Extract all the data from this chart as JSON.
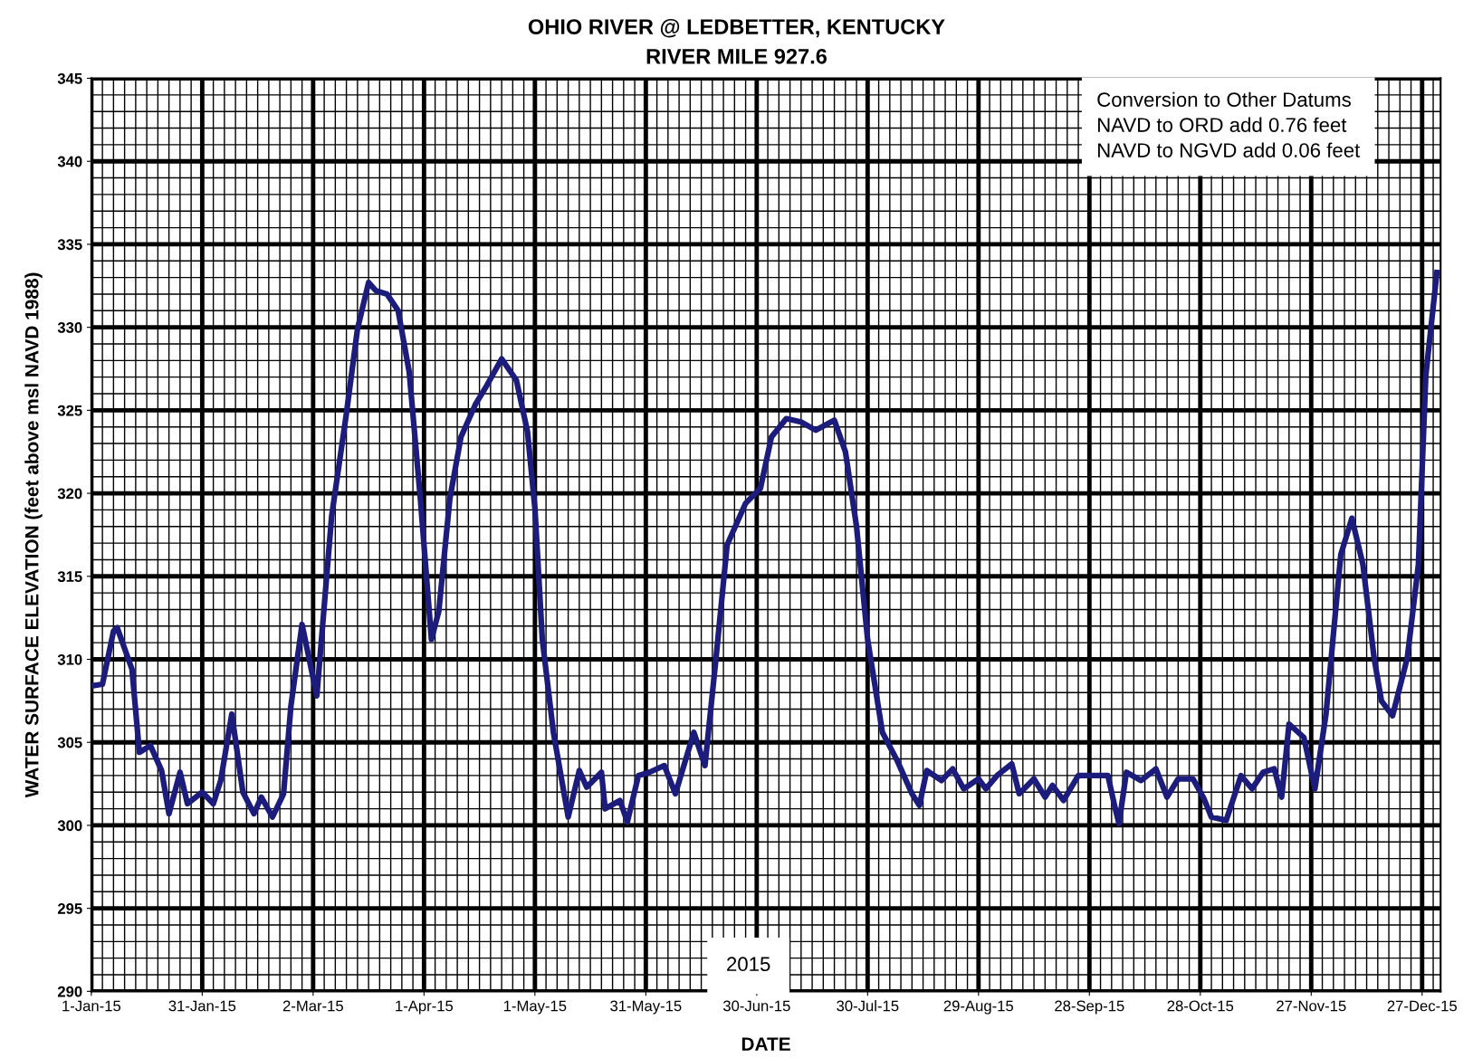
{
  "chart_data": {
    "type": "line",
    "title": "OHIO RIVER @ LEDBETTER, KENTUCKY",
    "subtitle": "RIVER MILE 927.6",
    "xlabel": "DATE",
    "ylabel": "WATER SURFACE ELEVATION (feet above msl NAVD 1988)",
    "x": [
      "2015-01-01",
      "2015-01-04",
      "2015-01-07",
      "2015-01-08",
      "2015-01-12",
      "2015-01-14",
      "2015-01-17",
      "2015-01-20",
      "2015-01-22",
      "2015-01-25",
      "2015-01-27",
      "2015-01-31",
      "2015-02-03",
      "2015-02-05",
      "2015-02-08",
      "2015-02-11",
      "2015-02-14",
      "2015-02-16",
      "2015-02-19",
      "2015-02-22",
      "2015-02-24",
      "2015-02-27",
      "2015-03-03",
      "2015-03-07",
      "2015-03-11",
      "2015-03-14",
      "2015-03-17",
      "2015-03-19",
      "2015-03-22",
      "2015-03-25",
      "2015-03-28",
      "2015-03-31",
      "2015-04-03",
      "2015-04-05",
      "2015-04-08",
      "2015-04-11",
      "2015-04-15",
      "2015-04-18",
      "2015-04-22",
      "2015-04-26",
      "2015-04-29",
      "2015-05-01",
      "2015-05-03",
      "2015-05-06",
      "2015-05-10",
      "2015-05-13",
      "2015-05-15",
      "2015-05-19",
      "2015-05-20",
      "2015-05-24",
      "2015-05-26",
      "2015-05-29",
      "2015-06-01",
      "2015-06-05",
      "2015-06-08",
      "2015-06-13",
      "2015-06-16",
      "2015-06-19",
      "2015-06-22",
      "2015-06-27",
      "2015-07-01",
      "2015-07-04",
      "2015-07-08",
      "2015-07-12",
      "2015-07-16",
      "2015-07-21",
      "2015-07-24",
      "2015-07-27",
      "2015-07-30",
      "2015-08-03",
      "2015-08-07",
      "2015-08-11",
      "2015-08-13",
      "2015-08-15",
      "2015-08-19",
      "2015-08-22",
      "2015-08-25",
      "2015-08-29",
      "2015-08-31",
      "2015-09-03",
      "2015-09-07",
      "2015-09-09",
      "2015-09-13",
      "2015-09-16",
      "2015-09-18",
      "2015-09-21",
      "2015-09-25",
      "2015-09-30",
      "2015-10-03",
      "2015-10-05",
      "2015-10-06",
      "2015-10-08",
      "2015-10-12",
      "2015-10-16",
      "2015-10-19",
      "2015-10-22",
      "2015-10-26",
      "2015-10-29",
      "2015-10-31",
      "2015-11-04",
      "2015-11-08",
      "2015-11-11",
      "2015-11-14",
      "2015-11-17",
      "2015-11-19",
      "2015-11-21",
      "2015-11-25",
      "2015-11-28",
      "2015-12-01",
      "2015-12-05",
      "2015-12-08",
      "2015-12-11",
      "2015-12-14",
      "2015-12-16",
      "2015-12-19",
      "2015-12-23",
      "2015-12-26",
      "2015-12-28",
      "2015-12-31"
    ],
    "series": [
      {
        "color": "#1c1c7c",
        "values": [
          308.4,
          308.5,
          311.7,
          311.9,
          309.4,
          304.4,
          304.8,
          303.3,
          300.7,
          303.2,
          301.3,
          302.0,
          301.3,
          302.7,
          306.7,
          302.0,
          300.7,
          301.7,
          300.5,
          301.9,
          307.2,
          312.1,
          307.8,
          318.6,
          324.8,
          329.9,
          332.7,
          332.2,
          332.0,
          331.0,
          327.3,
          319.7,
          311.2,
          312.9,
          319.7,
          323.4,
          325.4,
          326.5,
          328.1,
          326.8,
          323.7,
          319.1,
          311.2,
          305.6,
          300.5,
          303.3,
          302.3,
          303.2,
          301.0,
          301.5,
          300.2,
          303.0,
          303.2,
          303.6,
          301.9,
          305.6,
          303.6,
          310.1,
          316.9,
          319.4,
          320.3,
          323.4,
          324.5,
          324.3,
          323.8,
          324.4,
          322.5,
          318.0,
          311.2,
          305.6,
          303.9,
          301.9,
          301.2,
          303.3,
          302.7,
          303.4,
          302.2,
          302.8,
          302.2,
          303.0,
          303.7,
          301.9,
          302.8,
          301.7,
          302.4,
          301.5,
          303.0,
          303.0,
          303.0,
          301.0,
          300.1,
          303.2,
          302.7,
          303.4,
          301.7,
          302.8,
          302.8,
          301.6,
          300.5,
          300.3,
          303.0,
          302.2,
          303.2,
          303.4,
          301.7,
          306.1,
          305.3,
          302.2,
          306.7,
          316.3,
          318.5,
          315.7,
          310.1,
          307.5,
          306.6,
          310.1,
          315.7,
          327.1,
          333.3
        ]
      }
    ],
    "xlim": [
      "2015-01-01",
      "2016-01-01"
    ],
    "xticks": [
      {
        "value": "2015-01-01",
        "label": "1-Jan-15"
      },
      {
        "value": "2015-01-31",
        "label": "31-Jan-15"
      },
      {
        "value": "2015-03-02",
        "label": "2-Mar-15"
      },
      {
        "value": "2015-04-01",
        "label": "1-Apr-15"
      },
      {
        "value": "2015-05-01",
        "label": "1-May-15"
      },
      {
        "value": "2015-05-31",
        "label": "31-May-15"
      },
      {
        "value": "2015-06-30",
        "label": "30-Jun-15"
      },
      {
        "value": "2015-07-30",
        "label": "30-Jul-15"
      },
      {
        "value": "2015-08-29",
        "label": "29-Aug-15"
      },
      {
        "value": "2015-09-28",
        "label": "28-Sep-15"
      },
      {
        "value": "2015-10-28",
        "label": "28-Oct-15"
      },
      {
        "value": "2015-11-27",
        "label": "27-Nov-15"
      },
      {
        "value": "2015-12-27",
        "label": "27-Dec-15"
      }
    ],
    "ylim": [
      290,
      345
    ],
    "yticks": [
      290,
      295,
      300,
      305,
      310,
      315,
      320,
      325,
      330,
      335,
      340,
      345
    ],
    "grid": true,
    "legend": false,
    "marker": "none",
    "line_style": "solid",
    "annotations": [
      "Conversion to Other Datums\nNAVD to ORD add 0.76 feet\nNAVD to NGVD add 0.06 feet",
      "2015"
    ]
  }
}
